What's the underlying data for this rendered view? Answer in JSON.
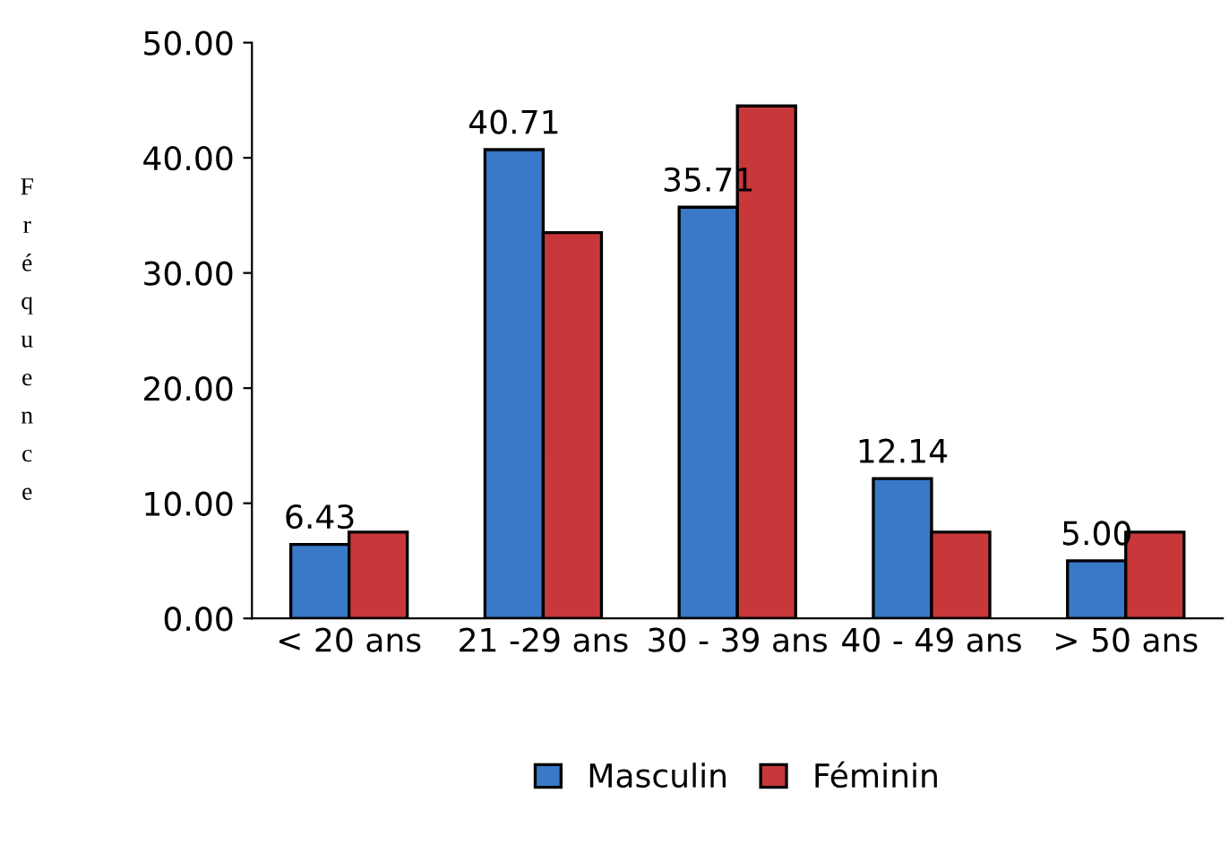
{
  "chart_data": {
    "type": "bar",
    "ylabel": "Fréquence",
    "categories": [
      "< 20 ans",
      "21 -29 ans",
      "30 - 39 ans",
      "40 - 49 ans",
      "> 50 ans"
    ],
    "series": [
      {
        "name": "Masculin",
        "color": "#3a78c8",
        "values": [
          6.43,
          40.71,
          35.71,
          12.14,
          5.0
        ],
        "value_labels": [
          "6.43",
          "40.71",
          "35.71",
          "12.14",
          "5.00"
        ]
      },
      {
        "name": "Féminin",
        "color": "#c8383a",
        "values": [
          7.5,
          33.5,
          44.5,
          7.5,
          7.5
        ]
      }
    ],
    "ylim": [
      0,
      50
    ],
    "yticks": [
      {
        "value": 0,
        "label": "0.00"
      },
      {
        "value": 10,
        "label": "10.00"
      },
      {
        "value": 20,
        "label": "20.00"
      },
      {
        "value": 30,
        "label": "30.00"
      },
      {
        "value": 40,
        "label": "40.00"
      },
      {
        "value": 50,
        "label": "50.00"
      }
    ],
    "grid": false,
    "legend": "bottom"
  }
}
